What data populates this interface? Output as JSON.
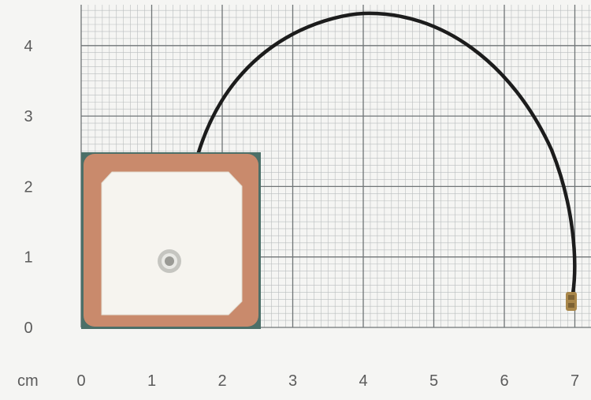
{
  "axis": {
    "unit_label": "cm",
    "x_ticks": [
      "0",
      "1",
      "2",
      "3",
      "4",
      "5",
      "6",
      "7"
    ],
    "y_ticks": [
      "0",
      "1",
      "2",
      "3",
      "4"
    ]
  },
  "colors": {
    "background": "#f5f5f3",
    "grid_minor": "#b9bdbe",
    "grid_major": "#6f7476",
    "antenna_border": "#c98a6c",
    "antenna_face": "#f6f4ef",
    "substrate": "#4c6f68",
    "cable": "#1c1c1c",
    "connector": "#a9874a"
  }
}
